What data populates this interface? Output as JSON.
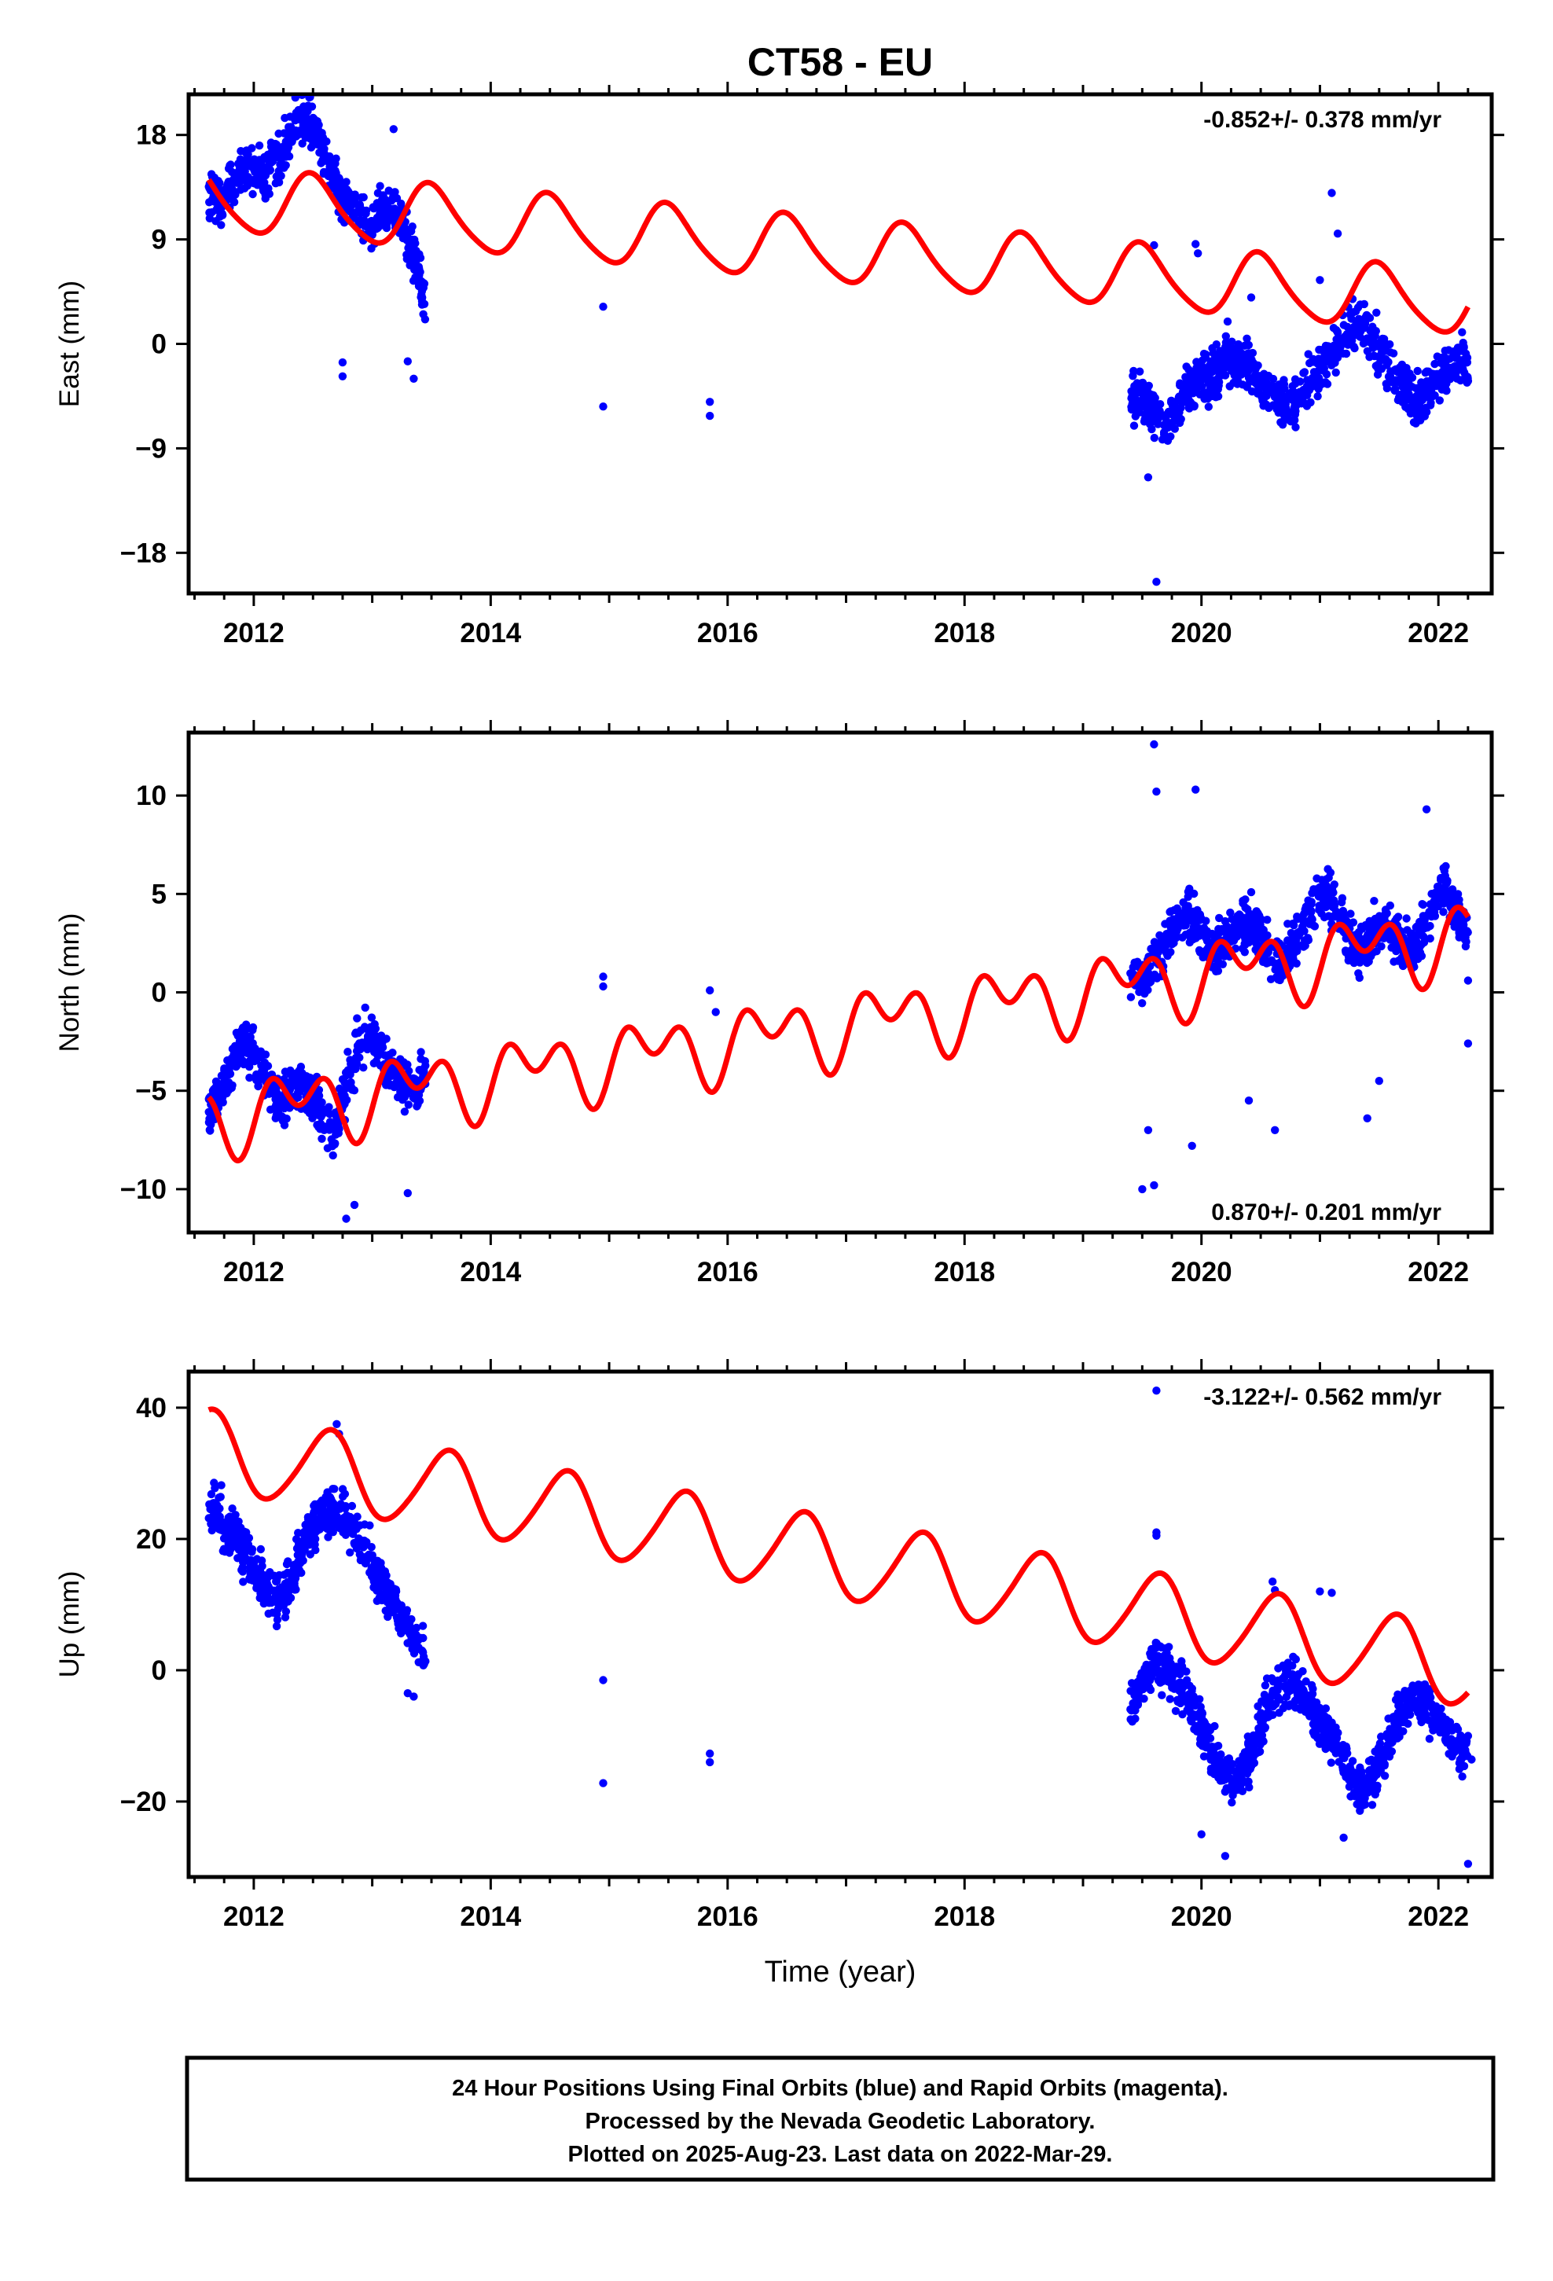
{
  "title": "CT58 - EU",
  "colors": {
    "final_orbits": "#0000ff",
    "model": "#ff0000",
    "frame": "#000000"
  },
  "chart_data": [
    {
      "type": "scatter",
      "ylabel": "East (mm)",
      "xlabel": "",
      "xlim": [
        2011.45,
        2022.45
      ],
      "ylim": [
        -21.5,
        21.5
      ],
      "x_ticks": [
        "2012",
        "2014",
        "2016",
        "2018",
        "2020",
        "2022"
      ],
      "y_ticks": [
        "18",
        "9",
        "0",
        "−9",
        "−18"
      ],
      "y_tick_values": [
        18,
        9,
        0,
        -9,
        -18
      ],
      "rate_label": "-0.852+/- 0.378 mm/yr",
      "rate_label_position": "top-right",
      "series": [
        {
          "name": "Final Orbits",
          "kind": "points",
          "segments": [
            {
              "x0": 2011.62,
              "x1": 2013.45,
              "y": [
                13,
                12.5,
                13.5,
                15,
                14.5,
                15,
                16,
                18.5,
                19.5,
                18,
                15,
                13,
                11.5,
                10.5,
                11,
                12,
                11,
                8,
                3
              ]
            },
            {
              "x0": 2019.4,
              "x1": 2022.25,
              "y": [
                -4.5,
                -5,
                -6,
                -6.5,
                -5.5,
                -4,
                -3,
                -2.5,
                -1,
                -1.5,
                -2,
                -3.5,
                -4.5,
                -5.5,
                -4.5,
                -3,
                -2,
                -0.5,
                1,
                2,
                0.5,
                -1,
                -2.5,
                -4,
                -5,
                -3.5,
                -2.5,
                -1.5,
                -2
              ]
            }
          ],
          "outliers": [
            [
              2012.75,
              -2.8
            ],
            [
              2012.75,
              -1.6
            ],
            [
              2013.18,
              18.5
            ],
            [
              2013.3,
              -1.5
            ],
            [
              2013.35,
              -3.0
            ],
            [
              2014.95,
              3.2
            ],
            [
              2014.95,
              -5.4
            ],
            [
              2015.85,
              -6.2
            ],
            [
              2015.85,
              -5.0
            ],
            [
              2019.55,
              -11.5
            ],
            [
              2019.6,
              8.5
            ],
            [
              2019.62,
              -20.5
            ],
            [
              2019.95,
              8.6
            ],
            [
              2019.97,
              7.8
            ],
            [
              2020.42,
              4.0
            ],
            [
              2021.1,
              13.0
            ],
            [
              2021.15,
              9.5
            ],
            [
              2021.0,
              5.5
            ],
            [
              2022.25,
              -3.2
            ],
            [
              2022.2,
              1.0
            ]
          ]
        },
        {
          "name": "Model",
          "kind": "line",
          "x_range": [
            2011.62,
            2022.25
          ],
          "y_offset": 7.9,
          "rate": -0.852,
          "annual_amplitude": 2.7,
          "annual_phase": 0.25,
          "semiannual_amplitude": 0.4,
          "semiannual_phase": 0.3
        }
      ]
    },
    {
      "type": "scatter",
      "ylabel": "North (mm)",
      "xlabel": "",
      "xlim": [
        2011.45,
        2022.45
      ],
      "ylim": [
        -12.2,
        13.2
      ],
      "x_ticks": [
        "2012",
        "2014",
        "2016",
        "2018",
        "2020",
        "2022"
      ],
      "y_ticks": [
        "10",
        "5",
        "0",
        "−5",
        "−10"
      ],
      "y_tick_values": [
        10,
        5,
        0,
        -5,
        -10
      ],
      "rate_label": "0.870+/- 0.201 mm/yr",
      "rate_label_position": "bottom-right",
      "series": [
        {
          "name": "Final Orbits",
          "kind": "points",
          "segments": [
            {
              "x0": 2011.62,
              "x1": 2013.45,
              "y": [
                -6,
                -5,
                -4,
                -2.5,
                -3,
                -4.5,
                -5.5,
                -5,
                -4.5,
                -5.5,
                -6.5,
                -7,
                -5,
                -3,
                -2,
                -3,
                -4,
                -4.5,
                -5,
                -4
              ]
            },
            {
              "x0": 2019.4,
              "x1": 2022.25,
              "y": [
                1,
                0.5,
                1.5,
                2.5,
                3.5,
                4,
                3,
                2,
                2.5,
                3,
                3.5,
                3,
                2,
                1.5,
                2.5,
                3.5,
                4.5,
                5,
                4,
                2.5,
                2,
                3,
                3.5,
                2.5,
                2,
                3,
                4.5,
                5.5,
                4,
                3
              ]
            }
          ],
          "outliers": [
            [
              2012.78,
              -11.5
            ],
            [
              2012.85,
              -10.8
            ],
            [
              2013.3,
              -10.2
            ],
            [
              2014.95,
              0.8
            ],
            [
              2014.95,
              0.3
            ],
            [
              2015.85,
              0.1
            ],
            [
              2015.9,
              -1.0
            ],
            [
              2019.5,
              -10.0
            ],
            [
              2019.55,
              -7.0
            ],
            [
              2019.6,
              12.6
            ],
            [
              2019.62,
              10.2
            ],
            [
              2019.6,
              -9.8
            ],
            [
              2019.95,
              10.3
            ],
            [
              2019.92,
              -7.8
            ],
            [
              2020.62,
              -7.0
            ],
            [
              2020.4,
              -5.5
            ],
            [
              2021.4,
              -6.4
            ],
            [
              2021.5,
              -4.5
            ],
            [
              2022.25,
              -2.6
            ],
            [
              2022.25,
              0.6
            ],
            [
              2021.9,
              9.3
            ]
          ]
        },
        {
          "name": "Model",
          "kind": "line",
          "x_range": [
            2011.62,
            2022.25
          ],
          "y_offset": -1.7,
          "rate": 0.87,
          "annual_amplitude": 1.2,
          "annual_phase": 0.1,
          "semiannual_amplitude": 1.2,
          "semiannual_phase": 0.0
        }
      ]
    },
    {
      "type": "scatter",
      "ylabel": "Up (mm)",
      "xlabel": "Time (year)",
      "xlim": [
        2011.45,
        2022.45
      ],
      "ylim": [
        -31.5,
        45.5
      ],
      "x_ticks": [
        "2012",
        "2014",
        "2016",
        "2018",
        "2020",
        "2022"
      ],
      "y_ticks": [
        "40",
        "20",
        "0",
        "−20"
      ],
      "y_tick_values": [
        40,
        20,
        0,
        -20
      ],
      "rate_label": "-3.122+/- 0.562 mm/yr",
      "rate_label_position": "top-right",
      "series": [
        {
          "name": "Final Orbits",
          "kind": "points",
          "segments": [
            {
              "x0": 2011.62,
              "x1": 2013.45,
              "y": [
                25,
                23,
                21,
                18,
                15,
                12,
                10,
                15,
                20,
                23,
                25,
                24,
                21,
                18,
                14,
                11,
                8,
                5,
                2
              ]
            },
            {
              "x0": 2019.4,
              "x1": 2022.25,
              "y": [
                -5,
                -2,
                1,
                0,
                -3,
                -7,
                -11,
                -15,
                -17,
                -14,
                -9,
                -4,
                -1,
                -3,
                -6,
                -9,
                -12,
                -16,
                -18,
                -15,
                -10,
                -6,
                -4,
                -6,
                -9,
                -11,
                -14
              ]
            }
          ],
          "outliers": [
            [
              2012.7,
              37.5
            ],
            [
              2012.72,
              36.0
            ],
            [
              2013.3,
              -3.5
            ],
            [
              2013.35,
              -4.0
            ],
            [
              2014.95,
              -1.5
            ],
            [
              2014.95,
              -17.2
            ],
            [
              2015.85,
              -12.7
            ],
            [
              2015.85,
              -14.0
            ],
            [
              2019.62,
              42.6
            ],
            [
              2019.62,
              20.5
            ],
            [
              2019.62,
              21.0
            ],
            [
              2020.0,
              -25.0
            ],
            [
              2020.2,
              -28.3
            ],
            [
              2020.6,
              13.5
            ],
            [
              2020.62,
              12.2
            ],
            [
              2021.0,
              12.0
            ],
            [
              2021.1,
              11.8
            ],
            [
              2021.2,
              -25.5
            ],
            [
              2022.25,
              -29.5
            ],
            [
              2022.25,
              -10.0
            ],
            [
              2022.28,
              -13.6
            ]
          ]
        },
        {
          "name": "Model",
          "kind": "line",
          "x_range": [
            2011.62,
            2022.25
          ],
          "y_offset": 16.7,
          "rate": -3.122,
          "annual_amplitude": 6.0,
          "annual_phase": 0.38,
          "semiannual_amplitude": 0.7,
          "semiannual_phase": 0.1
        }
      ]
    }
  ],
  "footer": {
    "line1": "24 Hour Positions Using Final Orbits (blue) and Rapid Orbits (magenta).",
    "line2": "Processed by the Nevada Geodetic Laboratory.",
    "line3": "Plotted on 2025-Aug-23. Last data on 2022-Mar-29."
  }
}
